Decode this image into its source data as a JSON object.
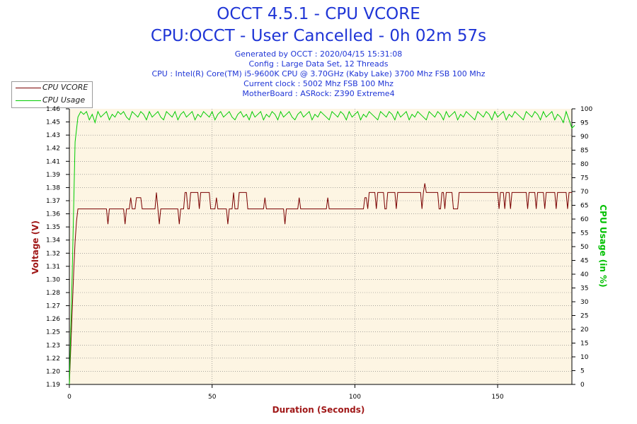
{
  "chart_data": {
    "type": "line",
    "title": "OCCT 4.5.1 - CPU VCORE",
    "subtitle": "CPU:OCCT - User Cancelled - 0h 02m 57s",
    "info_lines": [
      "Generated by OCCT : 2020/04/15 15:31:08",
      "Config : Large Data Set, 12 Threads",
      "CPU : Intel(R) Core(TM) i5-9600K CPU @ 3.70GHz (Kaby Lake) 3700 Mhz FSB 100 Mhz",
      "Current clock : 5002 Mhz FSB 100 Mhz",
      "MotherBoard : ASRock: Z390 Extreme4"
    ],
    "xlabel": "Duration (Seconds)",
    "ylabel": "Voltage (V)",
    "y2label": "CPU Usage (in %)",
    "xlim": [
      0,
      176
    ],
    "ylim": [
      1.19,
      1.46
    ],
    "y2lim": [
      0,
      100
    ],
    "x_ticks": [
      0,
      50,
      100,
      150
    ],
    "y_ticks": [
      "1.19",
      "1.20",
      "1.22",
      "1.23",
      "1.25",
      "1.26",
      "1.27",
      "1.28",
      "1.30",
      "1.31",
      "1.32",
      "1.34",
      "1.35",
      "1.36",
      "1.37",
      "1.38",
      "1.39",
      "1.41",
      "1.42",
      "1.43",
      "1.45",
      "1.46"
    ],
    "y2_ticks": [
      0,
      5,
      10,
      15,
      20,
      25,
      30,
      35,
      40,
      45,
      50,
      55,
      60,
      65,
      70,
      75,
      80,
      85,
      90,
      95,
      100
    ],
    "grid": true,
    "legend_position": "top-left",
    "series": [
      {
        "name": "CPU VCORE",
        "color": "#7a0000",
        "axis": "left",
        "points": [
          [
            0,
            1.19
          ],
          [
            1,
            1.262
          ],
          [
            1.5,
            1.3
          ],
          [
            2,
            1.33
          ],
          [
            2.5,
            1.35
          ],
          [
            3,
            1.362
          ],
          [
            13,
            1.362
          ],
          [
            13.5,
            1.347
          ],
          [
            14,
            1.362
          ],
          [
            19,
            1.362
          ],
          [
            19.5,
            1.347
          ],
          [
            20,
            1.362
          ],
          [
            21,
            1.362
          ],
          [
            21.5,
            1.373
          ],
          [
            22,
            1.362
          ],
          [
            23,
            1.362
          ],
          [
            23.5,
            1.373
          ],
          [
            25,
            1.373
          ],
          [
            25.5,
            1.362
          ],
          [
            30,
            1.362
          ],
          [
            30.5,
            1.378
          ],
          [
            31,
            1.362
          ],
          [
            31.5,
            1.347
          ],
          [
            32,
            1.362
          ],
          [
            38,
            1.362
          ],
          [
            38.5,
            1.347
          ],
          [
            39,
            1.362
          ],
          [
            40,
            1.362
          ],
          [
            40.5,
            1.378
          ],
          [
            41,
            1.378
          ],
          [
            41.5,
            1.362
          ],
          [
            42,
            1.362
          ],
          [
            42.5,
            1.378
          ],
          [
            45,
            1.378
          ],
          [
            45.5,
            1.362
          ],
          [
            46,
            1.378
          ],
          [
            49,
            1.378
          ],
          [
            49.5,
            1.362
          ],
          [
            51,
            1.362
          ],
          [
            51.5,
            1.373
          ],
          [
            52,
            1.362
          ],
          [
            55,
            1.362
          ],
          [
            55.5,
            1.347
          ],
          [
            56,
            1.362
          ],
          [
            57,
            1.362
          ],
          [
            57.5,
            1.378
          ],
          [
            58,
            1.362
          ],
          [
            59,
            1.362
          ],
          [
            59.5,
            1.378
          ],
          [
            62,
            1.378
          ],
          [
            62.5,
            1.362
          ],
          [
            68,
            1.362
          ],
          [
            68.5,
            1.373
          ],
          [
            69,
            1.362
          ],
          [
            75,
            1.362
          ],
          [
            75.5,
            1.347
          ],
          [
            76,
            1.362
          ],
          [
            80,
            1.362
          ],
          [
            80.5,
            1.373
          ],
          [
            81,
            1.362
          ],
          [
            90,
            1.362
          ],
          [
            90.5,
            1.373
          ],
          [
            91,
            1.362
          ],
          [
            103,
            1.362
          ],
          [
            103.5,
            1.373
          ],
          [
            104,
            1.373
          ],
          [
            104.5,
            1.362
          ],
          [
            105,
            1.378
          ],
          [
            107,
            1.378
          ],
          [
            107.5,
            1.362
          ],
          [
            108,
            1.378
          ],
          [
            110,
            1.378
          ],
          [
            110.5,
            1.362
          ],
          [
            111,
            1.362
          ],
          [
            111.5,
            1.378
          ],
          [
            114,
            1.378
          ],
          [
            114.5,
            1.362
          ],
          [
            115,
            1.378
          ],
          [
            123,
            1.378
          ],
          [
            123.5,
            1.362
          ],
          [
            124,
            1.378
          ],
          [
            124.5,
            1.387
          ],
          [
            125,
            1.378
          ],
          [
            129,
            1.378
          ],
          [
            129.5,
            1.362
          ],
          [
            130,
            1.362
          ],
          [
            130.5,
            1.378
          ],
          [
            131,
            1.378
          ],
          [
            131.5,
            1.362
          ],
          [
            132,
            1.378
          ],
          [
            134,
            1.378
          ],
          [
            134.5,
            1.362
          ],
          [
            136,
            1.362
          ],
          [
            136.5,
            1.378
          ],
          [
            150,
            1.378
          ],
          [
            150.5,
            1.362
          ],
          [
            151,
            1.378
          ],
          [
            152,
            1.378
          ],
          [
            152.5,
            1.362
          ],
          [
            153,
            1.378
          ],
          [
            154,
            1.378
          ],
          [
            154.5,
            1.362
          ],
          [
            155,
            1.378
          ],
          [
            160,
            1.378
          ],
          [
            160.5,
            1.362
          ],
          [
            161,
            1.378
          ],
          [
            163,
            1.378
          ],
          [
            163.5,
            1.362
          ],
          [
            164,
            1.378
          ],
          [
            166,
            1.378
          ],
          [
            166.5,
            1.362
          ],
          [
            167,
            1.378
          ],
          [
            170,
            1.378
          ],
          [
            170.5,
            1.362
          ],
          [
            171,
            1.378
          ],
          [
            174,
            1.378
          ],
          [
            174.5,
            1.362
          ],
          [
            175,
            1.378
          ],
          [
            176,
            1.378
          ]
        ]
      },
      {
        "name": "CPU Usage",
        "color": "#00cc00",
        "axis": "right",
        "values": [
          0,
          40,
          88,
          97,
          99,
          98,
          99,
          96,
          98,
          95,
          99,
          97,
          98,
          99,
          96,
          98,
          97,
          99,
          98,
          99,
          97,
          96,
          99,
          98,
          97,
          99,
          98,
          96,
          99,
          97,
          98,
          99,
          97,
          96,
          99,
          98,
          97,
          99,
          96,
          98,
          99,
          97,
          98,
          99,
          96,
          98,
          97,
          99,
          98,
          97,
          99,
          96,
          98,
          99,
          97,
          98,
          99,
          97,
          96,
          98,
          99,
          97,
          98,
          96,
          99,
          97,
          98,
          99,
          96,
          98,
          97,
          99,
          98,
          96,
          99,
          97,
          98,
          99,
          97,
          96,
          98,
          99,
          97,
          98,
          99,
          96,
          98,
          97,
          99,
          98,
          97,
          96,
          99,
          98,
          97,
          99,
          98,
          96,
          99,
          97,
          98,
          99,
          96,
          98,
          97,
          99,
          98,
          97,
          96,
          99,
          98,
          97,
          99,
          98,
          96,
          99,
          97,
          98,
          99,
          96,
          98,
          97,
          99,
          98,
          97,
          96,
          99,
          98,
          97,
          99,
          98,
          96,
          99,
          97,
          98,
          99,
          96,
          98,
          97,
          99,
          98,
          97,
          96,
          99,
          98,
          97,
          99,
          98,
          96,
          99,
          97,
          98,
          99,
          96,
          98,
          97,
          99,
          98,
          97,
          96,
          99,
          98,
          97,
          99,
          98,
          96,
          99,
          97,
          98,
          99,
          96,
          98,
          97,
          95,
          99,
          96,
          93,
          94
        ]
      }
    ],
    "colors": {
      "plot_background": "#fdf5e3",
      "left_axis_label": "#a01818",
      "right_axis_label": "#00c000",
      "x_axis_label": "#a01818"
    }
  }
}
